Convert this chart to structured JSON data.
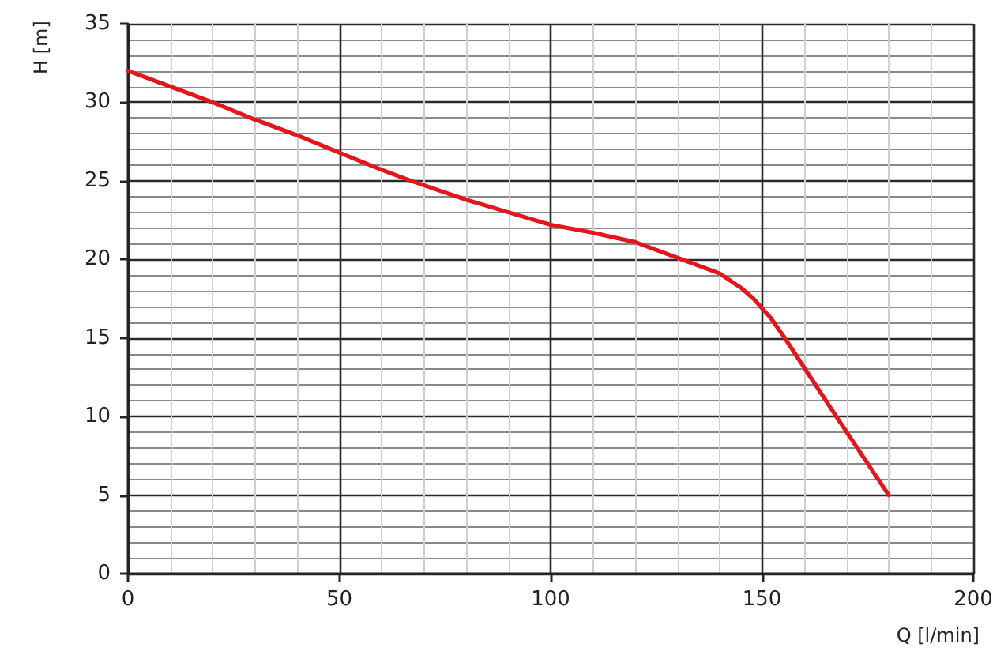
{
  "chart_data": {
    "type": "line",
    "xlabel": "Q [l/min]",
    "ylabel": "H [m]",
    "x": [
      0,
      10,
      20,
      30,
      40,
      50,
      60,
      67,
      80,
      90,
      100,
      110,
      120,
      130,
      140,
      145,
      148,
      150,
      152,
      155.4,
      167.6,
      180
    ],
    "values": [
      32,
      31,
      30,
      28.9,
      27.9,
      26.8,
      25.7,
      25,
      23.8,
      23,
      22.2,
      21.7,
      21.1,
      20.1,
      19.1,
      18.2,
      17.5,
      16.9,
      16.3,
      15,
      10,
      5
    ],
    "color": "#e3161b",
    "xlim": [
      0,
      200
    ],
    "xticks": [
      0,
      50,
      100,
      150,
      200
    ],
    "ylim": [
      0,
      35
    ],
    "yticks": [
      0,
      5,
      10,
      15,
      20,
      25,
      30,
      35
    ],
    "grid": true,
    "marker": "none",
    "line_style": "solid"
  }
}
